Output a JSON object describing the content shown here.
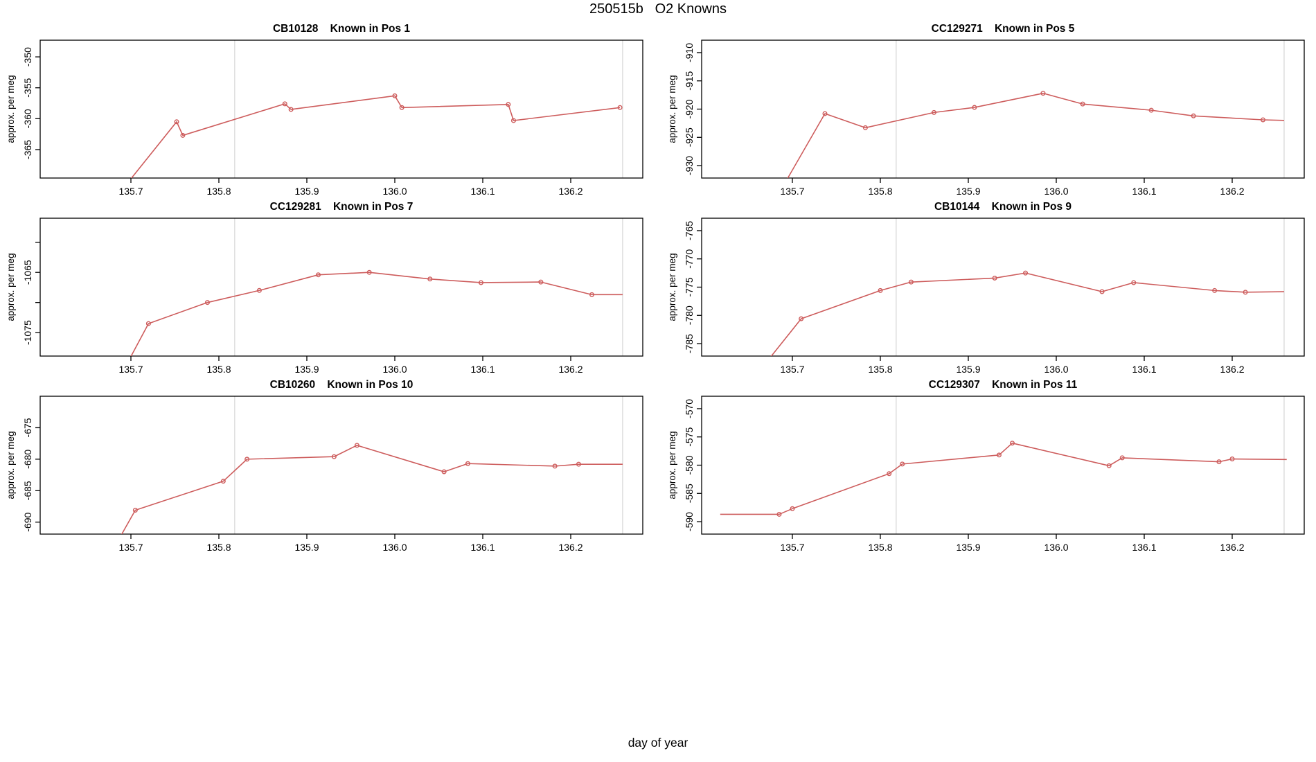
{
  "figure": {
    "title": "250515b   O2 Knowns",
    "xlabel": "day of year",
    "line_color": "#CD5C5C",
    "vline_color": "#D8D8D8",
    "axis_color": "#000000",
    "x_tick_values": [
      135.7,
      135.8,
      135.9,
      136.0,
      136.1,
      136.2
    ],
    "x_tick_labels": [
      "135.7",
      "135.8",
      "135.9",
      "136.0",
      "136.1",
      "136.2"
    ],
    "xlim": [
      135.597,
      136.282
    ],
    "vlines": [
      135.818,
      136.259
    ]
  },
  "chart_data": [
    {
      "type": "line",
      "title": "CB10128    Known in Pos 1",
      "ylabel": "approx. per meg",
      "xlabel": "day of year",
      "ylim": [
        -369.6,
        -347.3
      ],
      "y_tick_values": [
        -350,
        -355,
        -360,
        -365
      ],
      "y_tick_labels": [
        "-350",
        "-355",
        "-360",
        "-365"
      ],
      "x": [
        135.69,
        135.752,
        135.759,
        135.875,
        135.882,
        136.0,
        136.008,
        136.129,
        136.135,
        136.256
      ],
      "y": [
        -371.5,
        -360.5,
        -362.7,
        -357.6,
        -358.5,
        -356.3,
        -358.2,
        -357.7,
        -360.3,
        -358.2
      ],
      "marker": [
        0,
        1,
        1,
        1,
        1,
        1,
        1,
        1,
        1,
        1
      ]
    },
    {
      "type": "line",
      "title": "CC129271    Known in Pos 5",
      "ylabel": "approx. per meg",
      "xlabel": "day of year",
      "ylim": [
        -932.2,
        -907.8
      ],
      "y_tick_values": [
        -910,
        -915,
        -920,
        -925,
        -930
      ],
      "y_tick_labels": [
        "-910",
        "-915",
        "-920",
        "-925",
        "-930"
      ],
      "x": [
        135.69,
        135.737,
        135.783,
        135.861,
        135.907,
        135.985,
        136.03,
        136.108,
        136.156,
        136.235,
        136.259
      ],
      "y": [
        -933.5,
        -920.8,
        -923.3,
        -920.6,
        -919.7,
        -917.2,
        -919.1,
        -920.2,
        -921.2,
        -921.9,
        -922.0
      ],
      "marker": [
        0,
        1,
        1,
        1,
        1,
        1,
        1,
        1,
        1,
        1,
        0
      ]
    },
    {
      "type": "line",
      "title": "CC129281    Known in Pos 7",
      "ylabel": "approx. per meg",
      "xlabel": "day of year",
      "ylim": [
        -1078.9,
        -1056.0
      ],
      "y_tick_values": [
        -1060,
        -1065,
        -1070,
        -1075
      ],
      "y_tick_labels": [
        "",
        "-1065",
        "",
        "-1075"
      ],
      "x": [
        135.697,
        135.72,
        135.787,
        135.846,
        135.913,
        135.971,
        136.04,
        136.098,
        136.166,
        136.224,
        136.259
      ],
      "y": [
        -1079.8,
        -1073.5,
        -1070.0,
        -1068.0,
        -1065.4,
        -1065.0,
        -1066.1,
        -1066.7,
        -1066.6,
        -1068.7,
        -1068.7
      ],
      "marker": [
        0,
        1,
        1,
        1,
        1,
        1,
        1,
        1,
        1,
        1,
        0
      ]
    },
    {
      "type": "line",
      "title": "CB10144    Known in Pos 9",
      "ylabel": "approx. per meg",
      "xlabel": "day of year",
      "ylim": [
        -787.2,
        -762.8
      ],
      "y_tick_values": [
        -765,
        -770,
        -775,
        -780,
        -785
      ],
      "y_tick_labels": [
        "-765",
        "-770",
        "-775",
        "-780",
        "-785"
      ],
      "x": [
        135.672,
        135.71,
        135.8,
        135.835,
        135.93,
        135.965,
        136.052,
        136.088,
        136.18,
        136.215,
        136.259
      ],
      "y": [
        -788.0,
        -780.6,
        -775.6,
        -774.1,
        -773.4,
        -772.5,
        -775.8,
        -774.2,
        -775.6,
        -775.9,
        -775.8
      ],
      "marker": [
        0,
        1,
        1,
        1,
        1,
        1,
        1,
        1,
        1,
        1,
        0
      ]
    },
    {
      "type": "line",
      "title": "CB10260    Known in Pos 10",
      "ylabel": "approx. per meg",
      "xlabel": "day of year",
      "ylim": [
        -691.9,
        -670.0
      ],
      "y_tick_values": [
        -675,
        -680,
        -685,
        -690
      ],
      "y_tick_labels": [
        "-675",
        "-680",
        "-685",
        "-690"
      ],
      "x": [
        135.686,
        135.705,
        135.805,
        135.832,
        135.931,
        135.957,
        136.056,
        136.083,
        136.182,
        136.209,
        136.259
      ],
      "y": [
        -692.8,
        -688.1,
        -683.5,
        -680.0,
        -679.6,
        -677.8,
        -682.0,
        -680.7,
        -681.1,
        -680.8,
        -680.8
      ],
      "marker": [
        0,
        1,
        1,
        1,
        1,
        1,
        1,
        1,
        1,
        1,
        0
      ]
    },
    {
      "type": "line",
      "title": "CC129307    Known in Pos 11",
      "ylabel": "approx. per meg",
      "xlabel": "day of year",
      "ylim": [
        -592.2,
        -567.8
      ],
      "y_tick_values": [
        -570,
        -575,
        -580,
        -585,
        -590
      ],
      "y_tick_labels": [
        "-570",
        "-575",
        "-580",
        "-585",
        "-590"
      ],
      "x": [
        135.618,
        135.685,
        135.7,
        135.81,
        135.825,
        135.935,
        135.95,
        136.06,
        136.075,
        136.185,
        136.2,
        136.262
      ],
      "y": [
        -588.7,
        -588.7,
        -587.7,
        -581.5,
        -579.8,
        -578.2,
        -576.1,
        -580.1,
        -578.7,
        -579.4,
        -578.9,
        -579.0
      ],
      "marker": [
        0,
        1,
        1,
        1,
        1,
        1,
        1,
        1,
        1,
        1,
        1,
        0
      ]
    }
  ]
}
